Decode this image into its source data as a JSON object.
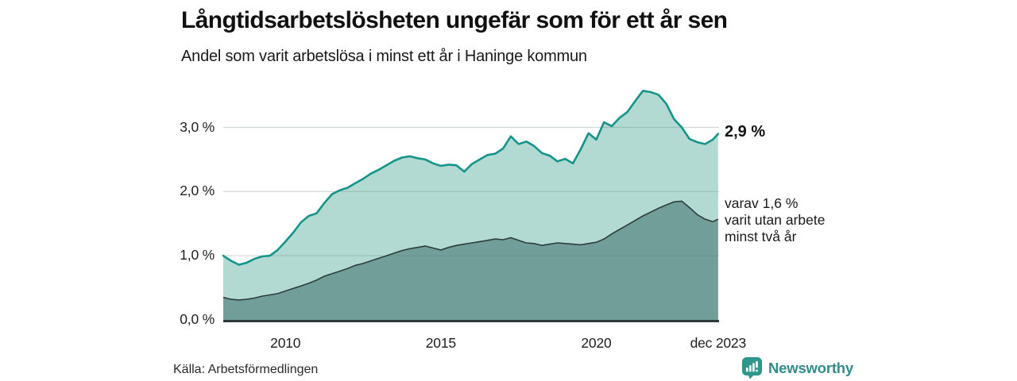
{
  "chart_data": {
    "type": "area",
    "title": "Långtidsarbetslösheten ungefär som för ett år sen",
    "subtitle": "Andel som varit arbetslösa i minst ett år i Haninge kommun",
    "source": "Källa: Arbetsförmedlingen",
    "xlim": [
      2008.0,
      2023.95
    ],
    "ylim": [
      0,
      3.6
    ],
    "grid": true,
    "legend_position": "right-of-line-ends",
    "y_ticks": [
      {
        "value": 0.0,
        "label": "0,0 %"
      },
      {
        "value": 1.0,
        "label": "1,0 %"
      },
      {
        "value": 2.0,
        "label": "2,0 %"
      },
      {
        "value": 3.0,
        "label": "3,0 %"
      }
    ],
    "x_ticks": [
      {
        "value": 2010,
        "label": "2010"
      },
      {
        "value": 2015,
        "label": "2015"
      },
      {
        "value": 2020,
        "label": "2020"
      },
      {
        "value": 2023.92,
        "label": "dec 2023"
      }
    ],
    "x": [
      2008.0,
      2008.25,
      2008.5,
      2008.75,
      2009.0,
      2009.25,
      2009.5,
      2009.75,
      2010.0,
      2010.25,
      2010.5,
      2010.75,
      2011.0,
      2011.25,
      2011.5,
      2011.75,
      2012.0,
      2012.25,
      2012.5,
      2012.75,
      2013.0,
      2013.25,
      2013.5,
      2013.75,
      2014.0,
      2014.25,
      2014.5,
      2014.75,
      2015.0,
      2015.25,
      2015.5,
      2015.75,
      2016.0,
      2016.25,
      2016.5,
      2016.75,
      2017.0,
      2017.25,
      2017.5,
      2017.75,
      2018.0,
      2018.25,
      2018.5,
      2018.75,
      2019.0,
      2019.25,
      2019.5,
      2019.75,
      2020.0,
      2020.25,
      2020.5,
      2020.75,
      2021.0,
      2021.25,
      2021.5,
      2021.75,
      2022.0,
      2022.25,
      2022.5,
      2022.75,
      2023.0,
      2023.25,
      2023.5,
      2023.75,
      2023.92
    ],
    "series": [
      {
        "name": "Andel arbetslösa minst ett år",
        "end_label": "2,9 %",
        "end_value": 2.9,
        "line_color": "#15948a",
        "fill_color": "#b3d9d3",
        "values": [
          1.0,
          0.92,
          0.86,
          0.89,
          0.95,
          0.99,
          1.0,
          1.09,
          1.22,
          1.36,
          1.52,
          1.62,
          1.66,
          1.82,
          1.96,
          2.02,
          2.06,
          2.13,
          2.2,
          2.28,
          2.34,
          2.41,
          2.48,
          2.53,
          2.55,
          2.52,
          2.5,
          2.44,
          2.4,
          2.42,
          2.41,
          2.31,
          2.43,
          2.5,
          2.57,
          2.59,
          2.67,
          2.86,
          2.74,
          2.78,
          2.71,
          2.6,
          2.56,
          2.47,
          2.51,
          2.44,
          2.66,
          2.91,
          2.81,
          3.08,
          3.02,
          3.15,
          3.24,
          3.41,
          3.57,
          3.55,
          3.51,
          3.37,
          3.13,
          3.0,
          2.82,
          2.77,
          2.74,
          2.81,
          2.9
        ]
      },
      {
        "name": "varav utan arbete minst två år",
        "end_label_lines": [
          "varav 1,6 %",
          "varit utan arbete",
          "minst två år"
        ],
        "end_value": 1.6,
        "line_color": "#2e3e3d",
        "fill_color": "#719e99",
        "values": [
          0.35,
          0.32,
          0.31,
          0.32,
          0.34,
          0.37,
          0.39,
          0.41,
          0.45,
          0.49,
          0.53,
          0.57,
          0.62,
          0.68,
          0.72,
          0.76,
          0.8,
          0.85,
          0.88,
          0.92,
          0.96,
          1.0,
          1.04,
          1.08,
          1.11,
          1.13,
          1.15,
          1.12,
          1.09,
          1.13,
          1.16,
          1.18,
          1.2,
          1.22,
          1.24,
          1.26,
          1.25,
          1.28,
          1.24,
          1.2,
          1.19,
          1.16,
          1.18,
          1.2,
          1.19,
          1.18,
          1.17,
          1.19,
          1.21,
          1.26,
          1.34,
          1.41,
          1.48,
          1.55,
          1.62,
          1.68,
          1.74,
          1.79,
          1.84,
          1.85,
          1.75,
          1.64,
          1.57,
          1.53,
          1.57
        ]
      }
    ],
    "layout": {
      "plot_left": 281,
      "plot_right": 905,
      "plot_top": 112,
      "plot_bottom": 403,
      "gridline_color": "#d9dee0",
      "axis_line_color": "#2b3a39"
    }
  },
  "branding": {
    "name": "Newsworthy",
    "icon": "newsworthy-pin-barchart-icon",
    "color": "#358b8b"
  }
}
